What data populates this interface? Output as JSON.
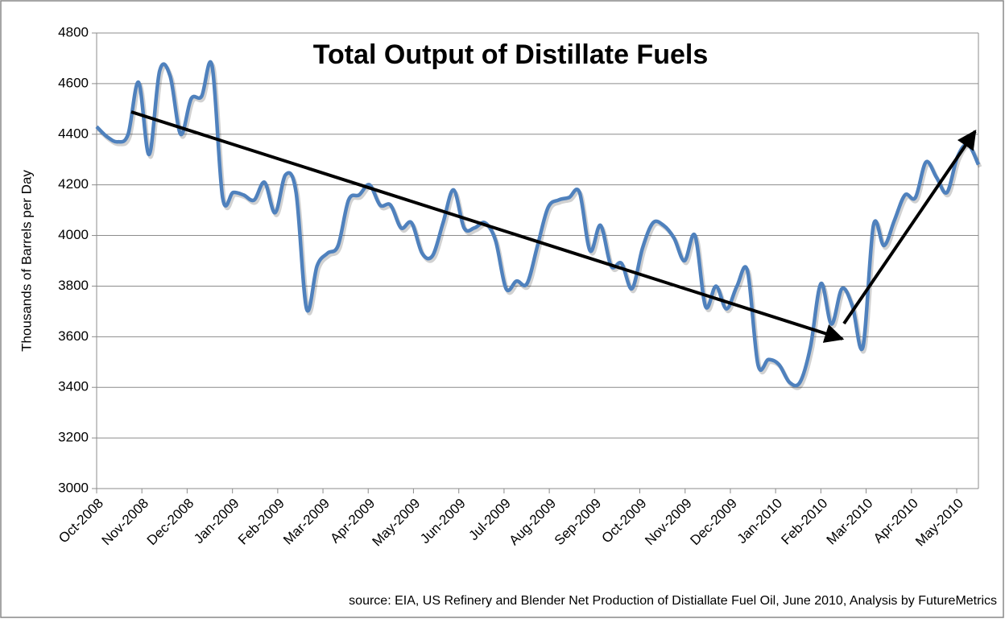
{
  "chart_data": {
    "type": "line",
    "title": "Total Output of Distillate Fuels",
    "y_label": "Thousands of Barrels per Day",
    "source": "source: EIA, US Refinery and  Blender Net Production  of Distiallate Fuel Oil, June 2010, Analysis by FutureMetrics",
    "xlim": [
      0,
      84
    ],
    "xticks": [
      {
        "value": 0,
        "label": "Oct-2008"
      },
      {
        "value": 4.31,
        "label": "Nov-2008"
      },
      {
        "value": 8.62,
        "label": "Dec-2008"
      },
      {
        "value": 12.94,
        "label": "Jan-2009"
      },
      {
        "value": 17.25,
        "label": "Feb-2009"
      },
      {
        "value": 21.56,
        "label": "Mar-2009"
      },
      {
        "value": 25.87,
        "label": "Apr-2009"
      },
      {
        "value": 30.18,
        "label": "May-2009"
      },
      {
        "value": 34.5,
        "label": "Jun-2009"
      },
      {
        "value": 38.81,
        "label": "Jul-2009"
      },
      {
        "value": 43.12,
        "label": "Aug-2009"
      },
      {
        "value": 47.43,
        "label": "Sep-2009"
      },
      {
        "value": 51.74,
        "label": "Oct-2009"
      },
      {
        "value": 56.06,
        "label": "Nov-2009"
      },
      {
        "value": 60.37,
        "label": "Dec-2009"
      },
      {
        "value": 64.68,
        "label": "Jan-2010"
      },
      {
        "value": 68.99,
        "label": "Feb-2010"
      },
      {
        "value": 73.3,
        "label": "Mar-2010"
      },
      {
        "value": 77.62,
        "label": "Apr-2010"
      },
      {
        "value": 81.93,
        "label": "May-2010"
      }
    ],
    "ylim": [
      3000,
      4800
    ],
    "yticks": [
      3000,
      3200,
      3400,
      3600,
      3800,
      4000,
      4200,
      4400,
      4600,
      4800
    ],
    "grid": true,
    "series": [
      {
        "name": "Distillate output",
        "color": "#4f81bd",
        "values": [
          4430,
          4390,
          4370,
          4400,
          4605,
          4320,
          4650,
          4630,
          4400,
          4540,
          4550,
          4670,
          4150,
          4170,
          4160,
          4140,
          4210,
          4090,
          4240,
          4170,
          3710,
          3880,
          3930,
          3960,
          4140,
          4160,
          4200,
          4120,
          4120,
          4030,
          4050,
          3930,
          3920,
          4050,
          4180,
          4030,
          4030,
          4050,
          3980,
          3790,
          3820,
          3810,
          3960,
          4110,
          4140,
          4150,
          4170,
          3940,
          4040,
          3880,
          3890,
          3790,
          3950,
          4050,
          4040,
          3990,
          3900,
          4000,
          3720,
          3800,
          3710,
          3800,
          3860,
          3490,
          3510,
          3490,
          3420,
          3420,
          3560,
          3810,
          3650,
          3790,
          3720,
          3560,
          4040,
          3960,
          4060,
          4160,
          4150,
          4290,
          4230,
          4170,
          4310,
          4360,
          4280
        ]
      }
    ]
  }
}
